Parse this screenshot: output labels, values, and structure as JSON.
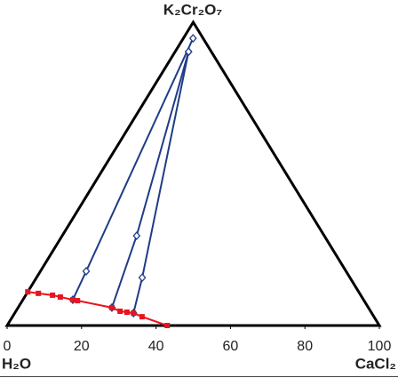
{
  "chart_data": {
    "type": "ternary",
    "vertices": {
      "top": "K₂Cr₂O₇",
      "left": "H₂O",
      "right": "CaCl₂"
    },
    "xlim": [
      0,
      100
    ],
    "xticks": [
      0,
      20,
      40,
      60,
      80,
      100
    ],
    "series": [
      {
        "color": "#1f3c88",
        "marker": "diamond",
        "x": [
          2.6,
          12.3,
          13.4
        ],
        "y": [
          94.7,
          17.9,
          8.5
        ]
      },
      {
        "color": "#1f3c88",
        "marker": "diamond",
        "x": [
          3.6,
          20.0,
          25.2
        ],
        "y": [
          90.3,
          29.6,
          5.9
        ]
      },
      {
        "color": "#1f3c88",
        "marker": "diamond",
        "x": [
          3.6,
          28.4,
          31.9
        ],
        "y": [
          90.3,
          15.8,
          4.1
        ]
      },
      {
        "color": "#e8141e",
        "marker": "square",
        "x": [
          0,
          3.1,
          7.2,
          9.6,
          13.4,
          14.8,
          25.2,
          28.0,
          30.0,
          31.9,
          34.8,
          43.0
        ],
        "y": [
          11.1,
          10.6,
          10.0,
          9.4,
          8.5,
          8.2,
          5.9,
          4.7,
          4.4,
          4.1,
          2.9,
          0
        ]
      }
    ]
  }
}
